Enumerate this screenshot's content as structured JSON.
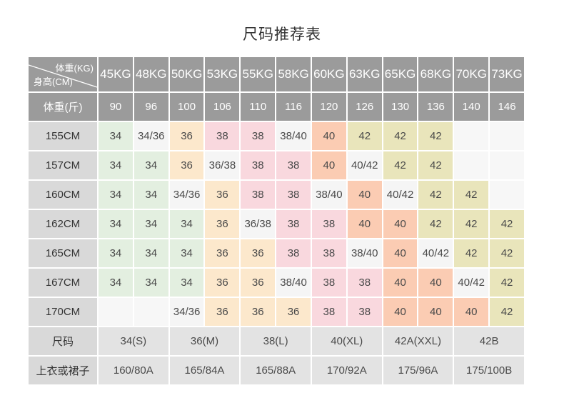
{
  "title": "尺码推荐表",
  "colors": {
    "header_bg": "#9b9b9b",
    "label_bg": "#d9d9d9",
    "bottom_bg": "#e3e3e3",
    "cell": {
      "green": "#e3efe0",
      "neutral": "#f5f5f5",
      "orange": "#fce8cc",
      "pink": "#f9d8de",
      "salmon": "#fbccb3",
      "khaki": "#e9e5bb",
      "empty": "#f7f7f7"
    },
    "title_text": "#333333",
    "cell_text": "#4a4a4a",
    "header_text": "#ffffff"
  },
  "chart_data": {
    "type": "table",
    "title": "尺码推荐表",
    "corner": {
      "top_right": "体重(KG)",
      "bottom_left": "身高(CM)"
    },
    "columns_kg": [
      "45KG",
      "48KG",
      "50KG",
      "53KG",
      "55KG",
      "58KG",
      "60KG",
      "63KG",
      "65KG",
      "68KG",
      "70KG",
      "73KG"
    ],
    "jin_row": {
      "label": "体重(斤)",
      "values": [
        "90",
        "96",
        "100",
        "106",
        "110",
        "116",
        "120",
        "126",
        "130",
        "136",
        "140",
        "146"
      ]
    },
    "height_rows": [
      {
        "label": "155CM",
        "cells": [
          [
            "34",
            "green"
          ],
          [
            "34/36",
            "neutral"
          ],
          [
            "36",
            "orange"
          ],
          [
            "38",
            "pink"
          ],
          [
            "38",
            "pink"
          ],
          [
            "38/40",
            "neutral"
          ],
          [
            "40",
            "salmon"
          ],
          [
            "42",
            "khaki"
          ],
          [
            "42",
            "khaki"
          ],
          [
            "42",
            "khaki"
          ],
          [
            "",
            "empty"
          ],
          [
            "",
            "empty"
          ]
        ]
      },
      {
        "label": "157CM",
        "cells": [
          [
            "34",
            "green"
          ],
          [
            "34",
            "green"
          ],
          [
            "36",
            "orange"
          ],
          [
            "36/38",
            "neutral"
          ],
          [
            "38",
            "pink"
          ],
          [
            "38",
            "pink"
          ],
          [
            "40",
            "salmon"
          ],
          [
            "40/42",
            "neutral"
          ],
          [
            "42",
            "khaki"
          ],
          [
            "42",
            "khaki"
          ],
          [
            "",
            "empty"
          ],
          [
            "",
            "empty"
          ]
        ]
      },
      {
        "label": "160CM",
        "cells": [
          [
            "34",
            "green"
          ],
          [
            "34",
            "green"
          ],
          [
            "34/36",
            "neutral"
          ],
          [
            "36",
            "orange"
          ],
          [
            "38",
            "pink"
          ],
          [
            "38",
            "pink"
          ],
          [
            "38/40",
            "neutral"
          ],
          [
            "40",
            "salmon"
          ],
          [
            "40/42",
            "neutral"
          ],
          [
            "42",
            "khaki"
          ],
          [
            "42",
            "khaki"
          ],
          [
            "",
            "empty"
          ]
        ]
      },
      {
        "label": "162CM",
        "cells": [
          [
            "34",
            "green"
          ],
          [
            "34",
            "green"
          ],
          [
            "34",
            "green"
          ],
          [
            "36",
            "orange"
          ],
          [
            "36/38",
            "neutral"
          ],
          [
            "38",
            "pink"
          ],
          [
            "38",
            "pink"
          ],
          [
            "40",
            "salmon"
          ],
          [
            "40",
            "salmon"
          ],
          [
            "42",
            "khaki"
          ],
          [
            "42",
            "khaki"
          ],
          [
            "42",
            "khaki"
          ]
        ]
      },
      {
        "label": "165CM",
        "cells": [
          [
            "34",
            "green"
          ],
          [
            "34",
            "green"
          ],
          [
            "34",
            "green"
          ],
          [
            "36",
            "orange"
          ],
          [
            "36",
            "orange"
          ],
          [
            "38",
            "pink"
          ],
          [
            "38",
            "pink"
          ],
          [
            "38/40",
            "neutral"
          ],
          [
            "40",
            "salmon"
          ],
          [
            "40/42",
            "neutral"
          ],
          [
            "42",
            "khaki"
          ],
          [
            "42",
            "khaki"
          ]
        ]
      },
      {
        "label": "167CM",
        "cells": [
          [
            "34",
            "green"
          ],
          [
            "34",
            "green"
          ],
          [
            "34",
            "green"
          ],
          [
            "36",
            "orange"
          ],
          [
            "36",
            "orange"
          ],
          [
            "38/40",
            "neutral"
          ],
          [
            "38",
            "pink"
          ],
          [
            "38",
            "pink"
          ],
          [
            "40",
            "salmon"
          ],
          [
            "40",
            "salmon"
          ],
          [
            "40/42",
            "neutral"
          ],
          [
            "42",
            "khaki"
          ]
        ]
      },
      {
        "label": "170CM",
        "cells": [
          [
            "",
            "empty"
          ],
          [
            "",
            "empty"
          ],
          [
            "34/36",
            "neutral"
          ],
          [
            "36",
            "orange"
          ],
          [
            "36",
            "orange"
          ],
          [
            "36",
            "orange"
          ],
          [
            "38",
            "pink"
          ],
          [
            "38",
            "pink"
          ],
          [
            "40",
            "salmon"
          ],
          [
            "40",
            "salmon"
          ],
          [
            "40",
            "salmon"
          ],
          [
            "42",
            "khaki"
          ]
        ]
      }
    ],
    "size_row": {
      "label": "尺码",
      "values": [
        "34(S)",
        "36(M)",
        "38(L)",
        "40(XL)",
        "42A(XXL)",
        "42B"
      ]
    },
    "garment_row": {
      "label": "上衣或裙子",
      "values": [
        "160/80A",
        "165/84A",
        "165/88A",
        "170/92A",
        "175/96A",
        "175/100B"
      ]
    }
  }
}
